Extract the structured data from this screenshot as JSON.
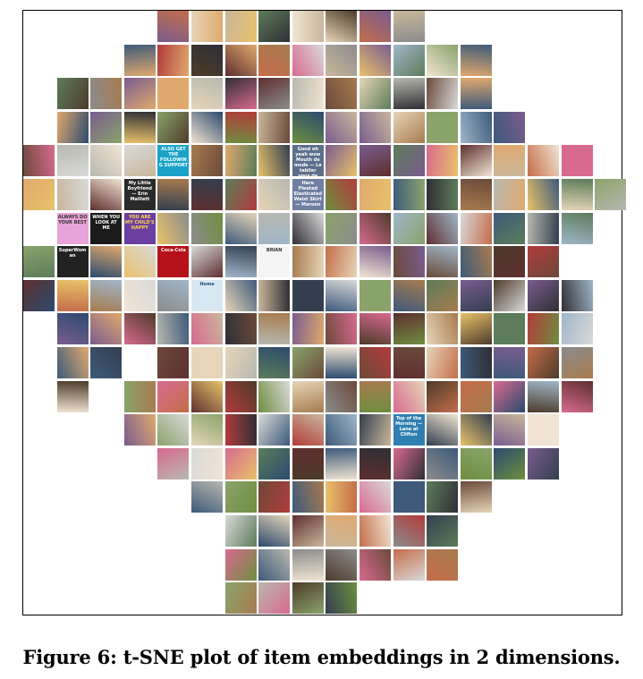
{
  "figure": {
    "caption": "Figure 6: t-SNE plot of item embeddings in 2 dimensions.",
    "tile_texts": [
      {
        "tile": "r3-c0",
        "text": ""
      },
      {
        "tile": "r4-c4",
        "text": "ALSO GET THE FOLLOWING SUPPORT"
      },
      {
        "tile": "r4-c8",
        "text": "Good oh yeah wow Mouth de mode — Le tablier vous de Petite Lulu"
      },
      {
        "tile": "r5-c3",
        "text": "My Little Boyfriend — Erin Maillett"
      },
      {
        "tile": "r5-c8",
        "text": "Hare Pleated Elasticated Waist Skirt — Maroon"
      },
      {
        "tile": "r6-c1",
        "text": "ALWAYS DO YOUR BEST"
      },
      {
        "tile": "r6-c2",
        "text": "WHEN YOU LOOK AT ME"
      },
      {
        "tile": "r6-c3",
        "text": "YOU ARE MY CHILD'S HAPPY"
      },
      {
        "tile": "r7-c1",
        "text": "SuperWoman"
      },
      {
        "tile": "r7-c4",
        "text": "Coca-Cola"
      },
      {
        "tile": "r7-c7",
        "text": "BRIAN"
      },
      {
        "tile": "r8-c5",
        "text": "Home"
      },
      {
        "tile": "r12-c11",
        "text": "Top of the Morning — Lane at Clifton"
      }
    ]
  }
}
